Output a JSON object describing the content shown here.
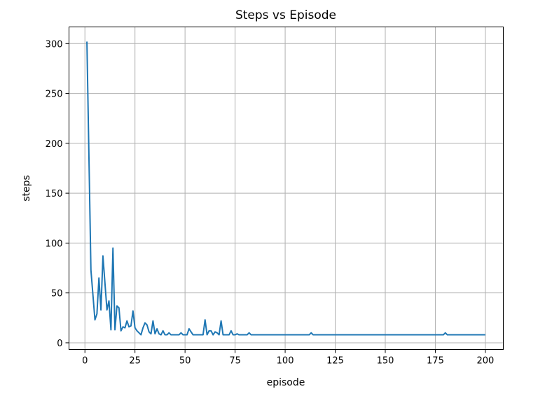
{
  "chart_data": {
    "type": "line",
    "title": "Steps vs Episode",
    "xlabel": "episode",
    "ylabel": "steps",
    "xlim": [
      -7.95,
      208.95
    ],
    "ylim": [
      -6.7,
      316.7
    ],
    "xticks": [
      0,
      25,
      50,
      75,
      100,
      125,
      150,
      175,
      200
    ],
    "yticks": [
      0,
      50,
      100,
      150,
      200,
      250,
      300
    ],
    "grid": true,
    "legend": "none",
    "line_color": "#1f77b4",
    "series": [
      {
        "values": [
          [
            1,
            302
          ],
          [
            3,
            73
          ],
          [
            4,
            48
          ],
          [
            5,
            23
          ],
          [
            6,
            29
          ],
          [
            7,
            65
          ],
          [
            8,
            33
          ],
          [
            9,
            87
          ],
          [
            10,
            60
          ],
          [
            11,
            33
          ],
          [
            12,
            42
          ],
          [
            13,
            13
          ],
          [
            14,
            95
          ],
          [
            15,
            13
          ],
          [
            16,
            37
          ],
          [
            17,
            35
          ],
          [
            18,
            12
          ],
          [
            19,
            16
          ],
          [
            20,
            15
          ],
          [
            21,
            22
          ],
          [
            22,
            16
          ],
          [
            23,
            17
          ],
          [
            24,
            32
          ],
          [
            25,
            15
          ],
          [
            26,
            12
          ],
          [
            27,
            10
          ],
          [
            28,
            8
          ],
          [
            29,
            15
          ],
          [
            30,
            20
          ],
          [
            31,
            18
          ],
          [
            32,
            11
          ],
          [
            33,
            9
          ],
          [
            34,
            22
          ],
          [
            35,
            9
          ],
          [
            36,
            14
          ],
          [
            37,
            9
          ],
          [
            38,
            8
          ],
          [
            39,
            12
          ],
          [
            40,
            8
          ],
          [
            41,
            8
          ],
          [
            42,
            10
          ],
          [
            43,
            8
          ],
          [
            45,
            8
          ],
          [
            47,
            8
          ],
          [
            48,
            10
          ],
          [
            49,
            8
          ],
          [
            51,
            8
          ],
          [
            52,
            14
          ],
          [
            53,
            11
          ],
          [
            54,
            8
          ],
          [
            56,
            8
          ],
          [
            58,
            8
          ],
          [
            59,
            8
          ],
          [
            60,
            23
          ],
          [
            61,
            8
          ],
          [
            62,
            12
          ],
          [
            63,
            12
          ],
          [
            64,
            8
          ],
          [
            65,
            11
          ],
          [
            66,
            10
          ],
          [
            67,
            8
          ],
          [
            68,
            22
          ],
          [
            69,
            8
          ],
          [
            71,
            8
          ],
          [
            72,
            8
          ],
          [
            73,
            12
          ],
          [
            74,
            8
          ],
          [
            75,
            8
          ],
          [
            76,
            9
          ],
          [
            77,
            8
          ],
          [
            79,
            8
          ],
          [
            81,
            8
          ],
          [
            82,
            10
          ],
          [
            83,
            8
          ],
          [
            100,
            8
          ],
          [
            112,
            8
          ],
          [
            113,
            10
          ],
          [
            114,
            8
          ],
          [
            130,
            8
          ],
          [
            150,
            8
          ],
          [
            170,
            8
          ],
          [
            179,
            8
          ],
          [
            180,
            10
          ],
          [
            181,
            8
          ],
          [
            190,
            8
          ],
          [
            200,
            8
          ]
        ]
      }
    ]
  }
}
